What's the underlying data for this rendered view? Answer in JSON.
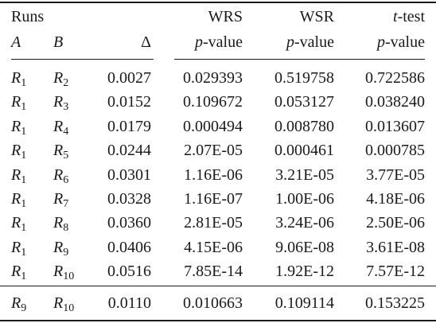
{
  "header": {
    "group_runs": "Runs",
    "col_a": "A",
    "col_b": "B",
    "col_delta": "Δ",
    "wrs_top": "WRS",
    "wsr_top": "WSR",
    "ttest_top_italic": "t",
    "ttest_top_rest": "-test",
    "pvalue_italic": "p",
    "pvalue_rest": "-value"
  },
  "rows": [
    {
      "a": "1",
      "b": "2",
      "delta": "0.0027",
      "wrs": "0.029393",
      "wsr": "0.519758",
      "ttest": "0.722586"
    },
    {
      "a": "1",
      "b": "3",
      "delta": "0.0152",
      "wrs": "0.109672",
      "wsr": "0.053127",
      "ttest": "0.038240"
    },
    {
      "a": "1",
      "b": "4",
      "delta": "0.0179",
      "wrs": "0.000494",
      "wsr": "0.008780",
      "ttest": "0.013607"
    },
    {
      "a": "1",
      "b": "5",
      "delta": "0.0244",
      "wrs": "2.07E-05",
      "wsr": "0.000461",
      "ttest": "0.000785"
    },
    {
      "a": "1",
      "b": "6",
      "delta": "0.0301",
      "wrs": "1.16E-06",
      "wsr": "3.21E-05",
      "ttest": "3.77E-05"
    },
    {
      "a": "1",
      "b": "7",
      "delta": "0.0328",
      "wrs": "1.16E-07",
      "wsr": "1.00E-06",
      "ttest": "4.18E-06"
    },
    {
      "a": "1",
      "b": "8",
      "delta": "0.0360",
      "wrs": "2.81E-05",
      "wsr": "3.24E-06",
      "ttest": "2.50E-06"
    },
    {
      "a": "1",
      "b": "9",
      "delta": "0.0406",
      "wrs": "4.15E-06",
      "wsr": "9.06E-08",
      "ttest": "3.61E-08"
    },
    {
      "a": "1",
      "b": "10",
      "delta": "0.0516",
      "wrs": "7.85E-14",
      "wsr": "1.92E-12",
      "ttest": "7.57E-12"
    }
  ],
  "final_row": {
    "a": "9",
    "b": "10",
    "delta": "0.0110",
    "wrs": "0.010663",
    "wsr": "0.109114",
    "ttest": "0.153225"
  },
  "run_letter": "R"
}
